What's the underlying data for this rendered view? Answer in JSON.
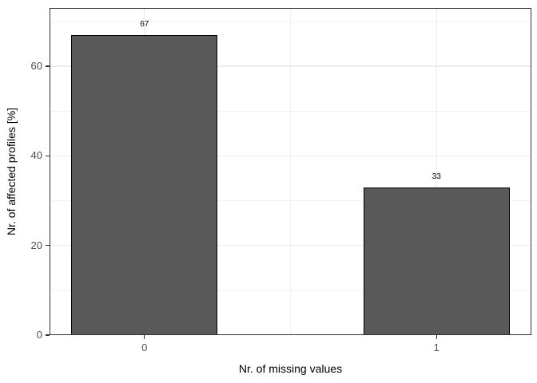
{
  "figure": {
    "background": "#ffffff",
    "style": "ggplot2-theme-bw"
  },
  "chart_data": {
    "type": "bar",
    "title": "",
    "xlabel": "Nr. of missing values",
    "ylabel": "Nr. of affected profiles [%]",
    "x": [
      0,
      1
    ],
    "values": [
      67,
      33
    ],
    "bar_labels": [
      "67",
      "33"
    ],
    "bar_width": 0.5,
    "xlim": [
      -0.325,
      1.325
    ],
    "ylim": [
      0,
      73
    ],
    "x_ticks": [
      0,
      1
    ],
    "x_tick_labels": [
      "0",
      "1"
    ],
    "y_ticks": [
      0,
      20,
      40,
      60
    ],
    "y_tick_labels": [
      "0",
      "20",
      "40",
      "60"
    ],
    "y_minor_gridlines": [
      10,
      30,
      50,
      70
    ],
    "x_minor_gridlines": [
      0.5
    ],
    "grid": "major and minor, horizontal and vertical",
    "legend": false,
    "colors": {
      "bar_fill": "#595959",
      "bar_border": "#000000",
      "panel_background": "#ffffff",
      "panel_border": "#333333",
      "grid_major": "#ebebeb",
      "grid_minor": "#f3f3f3",
      "tick_mark": "#333333",
      "tick_label": "#4d4d4d",
      "axis_title": "#000000",
      "bar_value_label": "#000000"
    }
  }
}
